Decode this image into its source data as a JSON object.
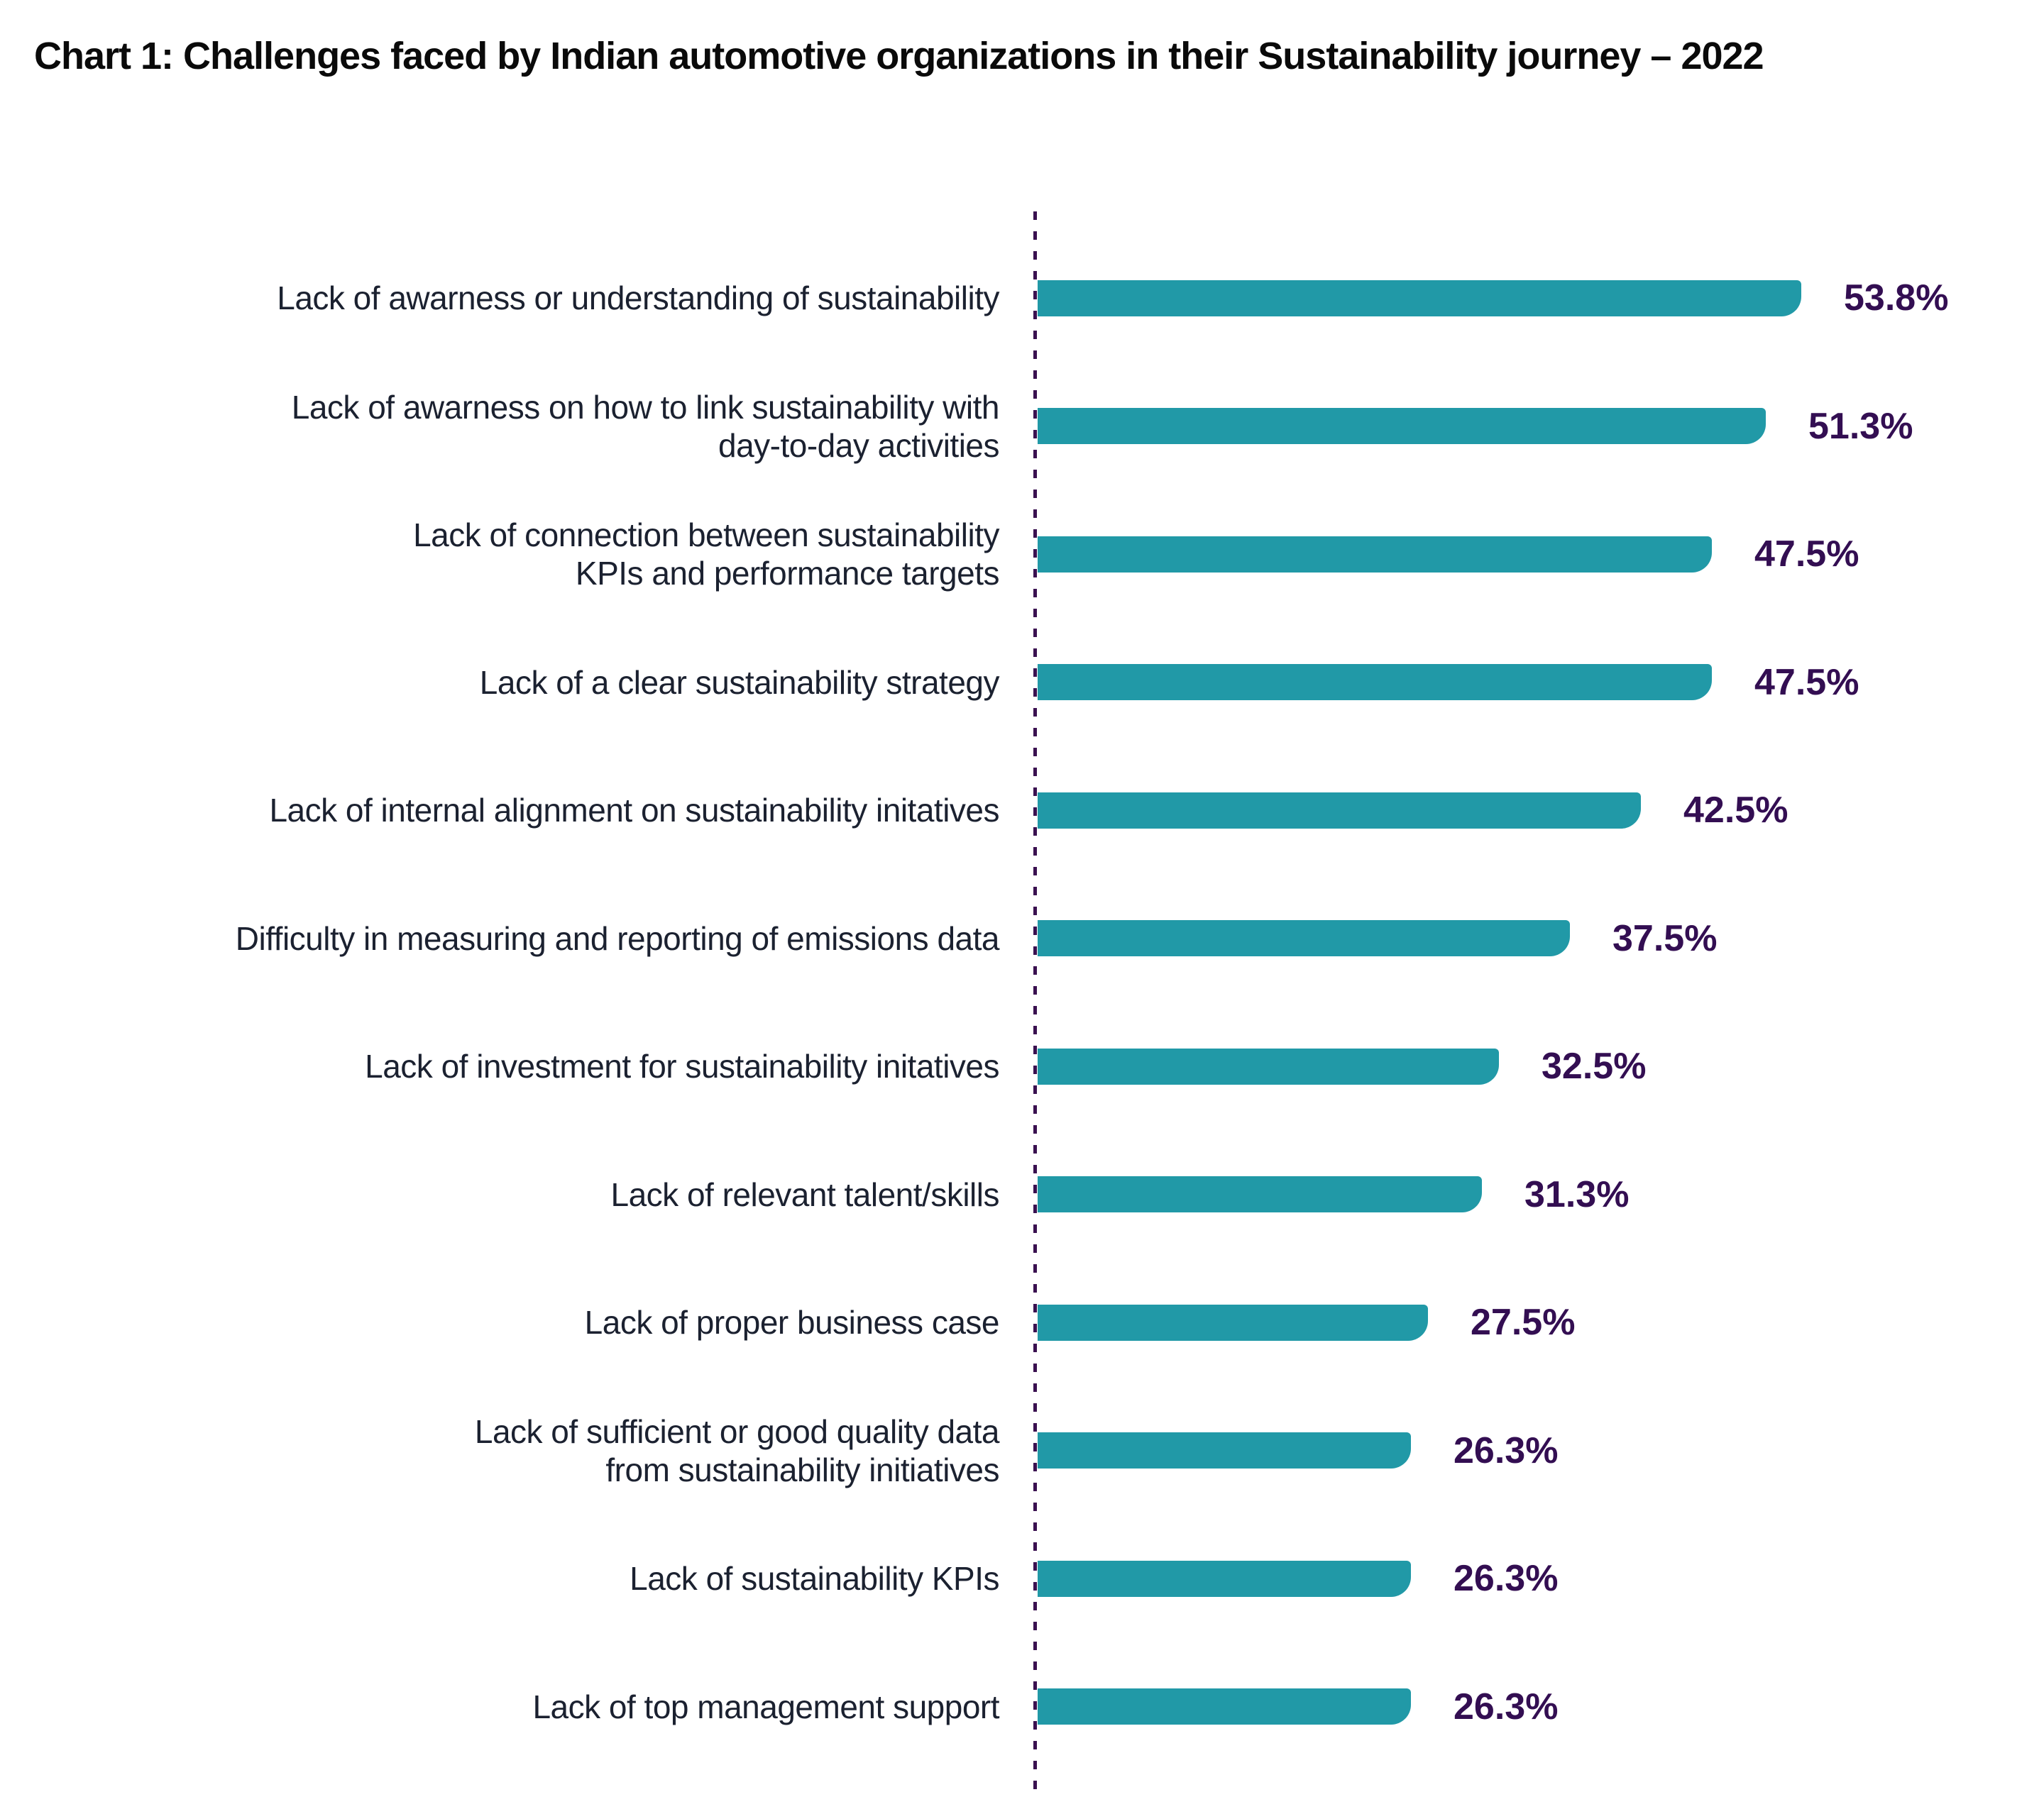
{
  "title": "Chart 1: Challenges faced by Indian automotive organizations in their Sustainability journey – 2022",
  "chart_data": {
    "type": "bar",
    "orientation": "horizontal",
    "title": "Chart 1: Challenges faced by Indian automotive organizations in their Sustainability journey – 2022",
    "categories": [
      "Lack of awarness or understanding of sustainability",
      "Lack of awarness on how to link sustainability with\nday-to-day activities",
      "Lack of connection between sustainability\nKPIs and performance targets",
      "Lack of a clear sustainability strategy",
      "Lack of internal alignment on sustainability initatives",
      "Difficulty in measuring and reporting of emissions data",
      "Lack of investment for sustainability initatives",
      "Lack of relevant talent/skills",
      "Lack of proper business case",
      "Lack of sufficient or good quality data\nfrom sustainability initiatives",
      "Lack of sustainability KPIs",
      "Lack of top management support"
    ],
    "values": [
      53.8,
      51.3,
      47.5,
      47.5,
      42.5,
      37.5,
      32.5,
      31.3,
      27.5,
      26.3,
      26.3,
      26.3
    ],
    "value_labels": [
      "53.8%",
      "51.3%",
      "47.5%",
      "47.5%",
      "42.5%",
      "37.5%",
      "32.5%",
      "31.3%",
      "27.5%",
      "26.3%",
      "26.3%",
      "26.3%"
    ],
    "xlim": [
      0,
      60
    ],
    "xlabel": "",
    "ylabel": "",
    "grid": false,
    "legend": "none",
    "axis_baseline_style": "dashed",
    "colors": {
      "bar": "#2199a7",
      "value_label": "#330e52",
      "category_label": "#1b2130",
      "axis_line": "#3a1150",
      "title": "#0a0a0a",
      "background": "#ffffff"
    }
  }
}
